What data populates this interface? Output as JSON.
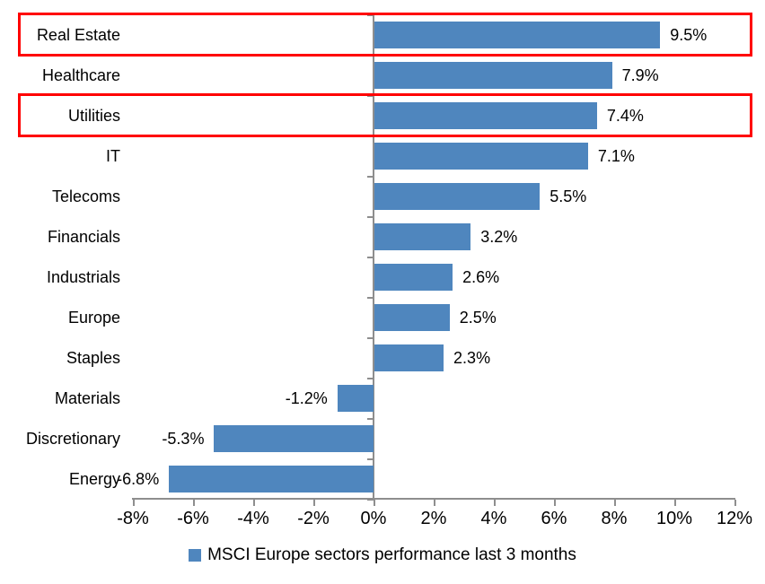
{
  "chart_data": {
    "type": "bar",
    "orientation": "horizontal",
    "title": "",
    "categories": [
      "Real Estate",
      "Healthcare",
      "Utilities",
      "IT",
      "Telecoms",
      "Financials",
      "Industrials",
      "Europe",
      "Staples",
      "Materials",
      "Discretionary",
      "Energy"
    ],
    "values": [
      9.5,
      7.9,
      7.4,
      7.1,
      5.5,
      3.2,
      2.6,
      2.5,
      2.3,
      -1.2,
      -5.3,
      -6.8
    ],
    "value_labels": [
      "9.5%",
      "7.9%",
      "7.4%",
      "7.1%",
      "5.5%",
      "3.2%",
      "2.6%",
      "2.5%",
      "2.3%",
      "-1.2%",
      "-5.3%",
      "-6.8%"
    ],
    "legend": "MSCI Europe sectors performance last 3 months",
    "legend_position": "bottom",
    "xlim": [
      -8,
      12
    ],
    "x_tick_step": 2,
    "x_tick_labels": [
      "-8%",
      "-6%",
      "-4%",
      "-2%",
      "0%",
      "2%",
      "4%",
      "6%",
      "8%",
      "10%",
      "12%"
    ],
    "grid": false,
    "highlighted": [
      "Real Estate",
      "Utilities"
    ],
    "colors": {
      "bar": "#4f86be",
      "axis": "#8e8e8e",
      "highlight_border": "#ff0000",
      "text": "#000000",
      "background": "#ffffff"
    }
  }
}
